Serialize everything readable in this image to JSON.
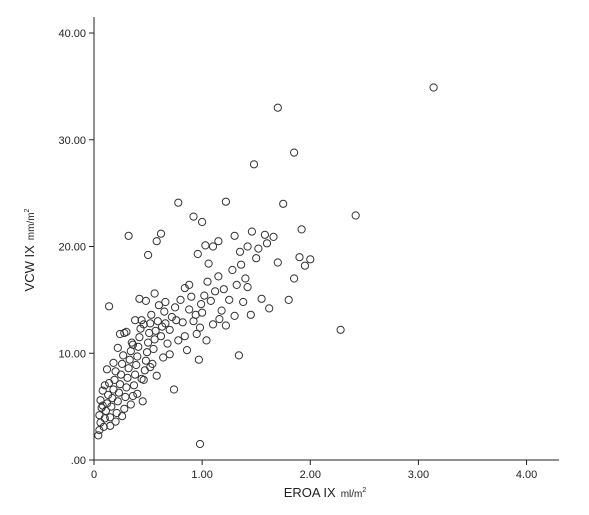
{
  "chart_data": {
    "type": "scatter",
    "title": "",
    "xlabel": "EROA IX",
    "xunit": "ml/m",
    "xunit_sup": "2",
    "ylabel": "VCW IX",
    "yunit": "mm/m",
    "yunit_sup": "2",
    "xlim": [
      0,
      4.3
    ],
    "ylim": [
      0,
      41.5
    ],
    "xticks": [
      0,
      1,
      2,
      3,
      4
    ],
    "xtick_labels": [
      "0",
      "1.00",
      "2.00",
      "3.00",
      "4.00"
    ],
    "yticks": [
      0,
      10,
      20,
      30,
      40
    ],
    "ytick_labels": [
      ".00",
      "10.00",
      "20.00",
      "30.00",
      "40.00"
    ],
    "grid": false,
    "marker": "open-circle",
    "points": [
      [
        0.04,
        2.3
      ],
      [
        0.05,
        2.8
      ],
      [
        0.06,
        3.5
      ],
      [
        0.05,
        4.2
      ],
      [
        0.07,
        4.9
      ],
      [
        0.06,
        5.6
      ],
      [
        0.08,
        6.5
      ],
      [
        0.09,
        3.1
      ],
      [
        0.1,
        3.9
      ],
      [
        0.11,
        4.6
      ],
      [
        0.12,
        5.3
      ],
      [
        0.13,
        6.1
      ],
      [
        0.1,
        7.0
      ],
      [
        0.14,
        7.2
      ],
      [
        0.15,
        4.0
      ],
      [
        0.16,
        5.0
      ],
      [
        0.17,
        5.8
      ],
      [
        0.18,
        6.6
      ],
      [
        0.19,
        7.5
      ],
      [
        0.2,
        8.3
      ],
      [
        0.15,
        3.2
      ],
      [
        0.21,
        4.4
      ],
      [
        0.22,
        5.5
      ],
      [
        0.23,
        6.3
      ],
      [
        0.24,
        7.1
      ],
      [
        0.25,
        8.0
      ],
      [
        0.26,
        9.0
      ],
      [
        0.27,
        9.8
      ],
      [
        0.22,
        10.5
      ],
      [
        0.28,
        4.8
      ],
      [
        0.29,
        5.9
      ],
      [
        0.3,
        6.8
      ],
      [
        0.31,
        7.7
      ],
      [
        0.32,
        8.6
      ],
      [
        0.33,
        9.4
      ],
      [
        0.34,
        10.2
      ],
      [
        0.35,
        11.0
      ],
      [
        0.3,
        12.0
      ],
      [
        0.36,
        6.0
      ],
      [
        0.37,
        7.0
      ],
      [
        0.38,
        8.0
      ],
      [
        0.39,
        8.9
      ],
      [
        0.4,
        9.7
      ],
      [
        0.41,
        10.6
      ],
      [
        0.42,
        11.5
      ],
      [
        0.43,
        12.3
      ],
      [
        0.44,
        13.1
      ],
      [
        0.45,
        5.5
      ],
      [
        0.46,
        7.5
      ],
      [
        0.47,
        8.4
      ],
      [
        0.48,
        9.3
      ],
      [
        0.49,
        10.1
      ],
      [
        0.5,
        11.0
      ],
      [
        0.51,
        11.9
      ],
      [
        0.52,
        12.8
      ],
      [
        0.53,
        13.6
      ],
      [
        0.54,
        9.0
      ],
      [
        0.55,
        10.4
      ],
      [
        0.56,
        11.3
      ],
      [
        0.57,
        12.1
      ],
      [
        0.58,
        7.9
      ],
      [
        0.59,
        13.0
      ],
      [
        0.6,
        14.5
      ],
      [
        0.62,
        11.6
      ],
      [
        0.63,
        12.5
      ],
      [
        0.64,
        9.6
      ],
      [
        0.65,
        13.9
      ],
      [
        0.66,
        14.8
      ],
      [
        0.68,
        10.9
      ],
      [
        0.7,
        12.2
      ],
      [
        0.72,
        13.4
      ],
      [
        0.74,
        6.6
      ],
      [
        0.75,
        14.3
      ],
      [
        0.78,
        11.2
      ],
      [
        0.8,
        15.0
      ],
      [
        0.82,
        12.9
      ],
      [
        0.84,
        16.1
      ],
      [
        0.86,
        10.3
      ],
      [
        0.88,
        14.1
      ],
      [
        0.9,
        15.3
      ],
      [
        0.92,
        13.0
      ],
      [
        0.95,
        11.8
      ],
      [
        0.97,
        9.4
      ],
      [
        0.98,
        12.4
      ],
      [
        0.99,
        14.6
      ],
      [
        0.98,
        1.5
      ],
      [
        1.0,
        13.8
      ],
      [
        1.02,
        15.4
      ],
      [
        1.05,
        16.7
      ],
      [
        1.08,
        14.9
      ],
      [
        1.1,
        12.7
      ],
      [
        1.12,
        15.8
      ],
      [
        1.15,
        17.2
      ],
      [
        1.18,
        14.0
      ],
      [
        1.2,
        16.0
      ],
      [
        1.22,
        12.6
      ],
      [
        1.25,
        15.0
      ],
      [
        1.28,
        17.8
      ],
      [
        1.3,
        13.5
      ],
      [
        1.32,
        16.4
      ],
      [
        1.34,
        9.8
      ],
      [
        1.36,
        18.3
      ],
      [
        1.38,
        14.8
      ],
      [
        1.4,
        17.0
      ],
      [
        1.42,
        16.2
      ],
      [
        1.45,
        13.6
      ],
      [
        1.5,
        18.9
      ],
      [
        1.55,
        15.1
      ],
      [
        1.6,
        20.3
      ],
      [
        1.62,
        14.2
      ],
      [
        1.66,
        20.9
      ],
      [
        1.7,
        18.5
      ],
      [
        1.75,
        24.0
      ],
      [
        1.8,
        15.0
      ],
      [
        1.85,
        17.0
      ],
      [
        1.9,
        19.0
      ],
      [
        1.95,
        18.2
      ],
      [
        2.0,
        18.8
      ],
      [
        1.92,
        21.6
      ],
      [
        0.32,
        21.0
      ],
      [
        0.5,
        19.2
      ],
      [
        0.58,
        20.5
      ],
      [
        0.62,
        21.2
      ],
      [
        0.78,
        24.1
      ],
      [
        0.92,
        22.8
      ],
      [
        0.96,
        19.3
      ],
      [
        1.0,
        22.3
      ],
      [
        1.03,
        20.1
      ],
      [
        1.06,
        18.4
      ],
      [
        1.1,
        20.0
      ],
      [
        1.15,
        20.5
      ],
      [
        1.22,
        24.2
      ],
      [
        1.3,
        21.0
      ],
      [
        1.35,
        19.5
      ],
      [
        1.42,
        20.0
      ],
      [
        1.46,
        21.4
      ],
      [
        1.52,
        19.8
      ],
      [
        1.58,
        21.1
      ],
      [
        1.48,
        27.7
      ],
      [
        1.7,
        33.0
      ],
      [
        1.85,
        28.8
      ],
      [
        2.42,
        22.9
      ],
      [
        2.28,
        12.2
      ],
      [
        3.14,
        34.9
      ],
      [
        0.14,
        14.4
      ],
      [
        0.42,
        15.1
      ],
      [
        0.48,
        14.9
      ],
      [
        0.24,
        11.8
      ],
      [
        0.18,
        9.1
      ],
      [
        0.08,
        5.1
      ],
      [
        0.12,
        8.5
      ],
      [
        0.2,
        3.6
      ],
      [
        0.26,
        4.1
      ],
      [
        0.34,
        5.2
      ],
      [
        0.4,
        6.2
      ],
      [
        0.44,
        7.6
      ],
      [
        0.36,
        10.8
      ],
      [
        0.28,
        11.9
      ],
      [
        0.38,
        13.1
      ],
      [
        0.46,
        12.7
      ],
      [
        0.52,
        8.7
      ],
      [
        0.56,
        15.6
      ],
      [
        0.66,
        12.8
      ],
      [
        0.7,
        9.9
      ],
      [
        0.76,
        13.1
      ],
      [
        0.84,
        11.6
      ],
      [
        0.88,
        16.4
      ],
      [
        0.94,
        13.6
      ],
      [
        1.04,
        11.2
      ],
      [
        1.16,
        13.2
      ]
    ]
  }
}
